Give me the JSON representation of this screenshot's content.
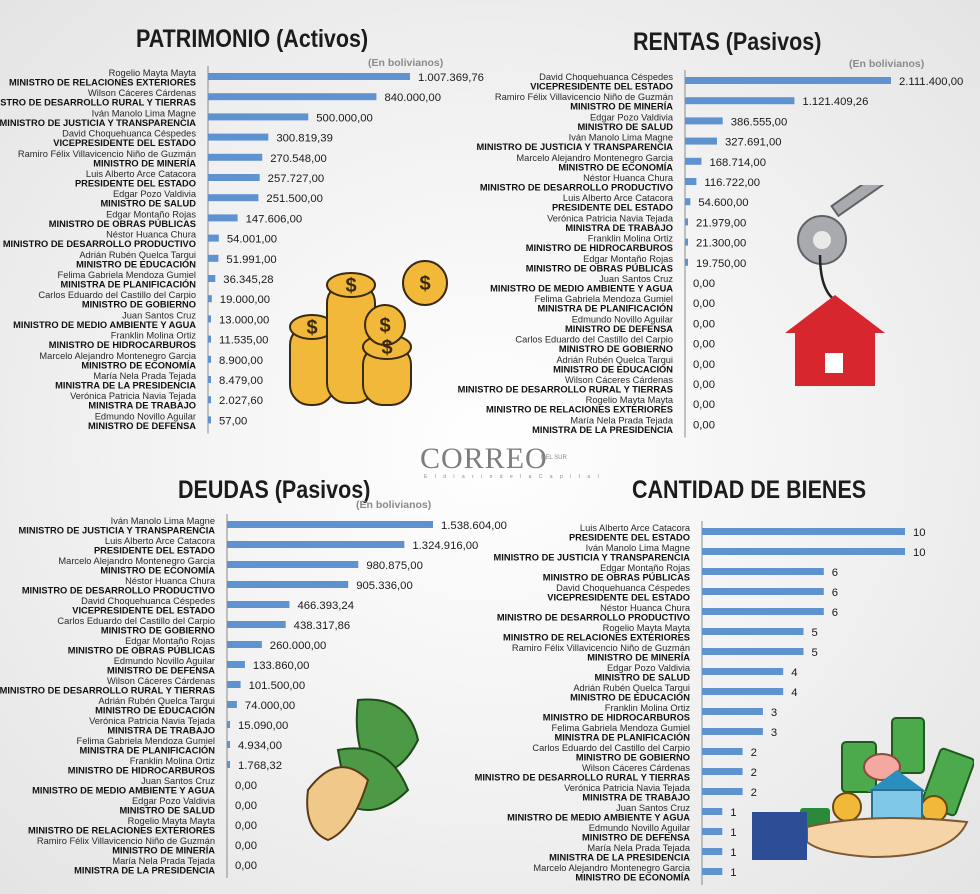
{
  "branding": {
    "logo_text": "CORREO",
    "logo_tag": "DEL SUR",
    "logo_sub": "E l   d i a r i o   d e   l a   C a p i t a l"
  },
  "colors": {
    "bar": "#5f93cf",
    "title": "#1c1c1c",
    "unit": "#8a8a8a"
  },
  "chart_data": [
    {
      "type": "bar",
      "orientation": "horizontal",
      "title": "PATRIMONIO (Activos)",
      "unit_note": "(En bolivianos)",
      "bars": [
        {
          "name": "Rogelio Mayta Mayta",
          "role": "MINISTRO DE RELACIONES EXTERIORES",
          "value": 1007369.76,
          "value_label": "1.007.369,76"
        },
        {
          "name": "Wilson Cáceres Cárdenas",
          "role": "MINISTRO DE DESARROLLO RURAL Y TIERRAS",
          "value": 840000,
          "value_label": "840.000,00"
        },
        {
          "name": "Iván Manolo Lima Magne",
          "role": "MINISTRO DE JUSTICIA Y TRANSPARENCIA",
          "value": 500000,
          "value_label": "500.000,00"
        },
        {
          "name": "David Choquehuanca Céspedes",
          "role": "VICEPRESIDENTE DEL ESTADO",
          "value": 300819.39,
          "value_label": "300.819,39"
        },
        {
          "name": "Ramiro Félix Villavicencio Niño de Guzmán",
          "role": "MINISTRO DE MINERÍA",
          "value": 270548,
          "value_label": "270.548,00"
        },
        {
          "name": "Luis Alberto Arce Catacora",
          "role": "PRESIDENTE DEL ESTADO",
          "value": 257727,
          "value_label": "257.727,00"
        },
        {
          "name": "Edgar Pozo Valdivia",
          "role": "MINISTRO DE SALUD",
          "value": 251500,
          "value_label": "251.500,00"
        },
        {
          "name": "Edgar Montaño Rojas",
          "role": "MINISTRO DE OBRAS PÚBLICAS",
          "value": 147606,
          "value_label": "147.606,00"
        },
        {
          "name": "Néstor Huanca Chura",
          "role": "MINISTRO DE DESARROLLO PRODUCTIVO",
          "value": 54001,
          "value_label": "54.001,00"
        },
        {
          "name": "Adrián Rubén Quelca Tarqui",
          "role": "MINISTRO DE EDUCACIÓN",
          "value": 51991,
          "value_label": "51.991,00"
        },
        {
          "name": "Felima Gabriela Mendoza Gumiel",
          "role": "MINISTRA DE PLANIFICACIÓN",
          "value": 36345.28,
          "value_label": "36.345,28"
        },
        {
          "name": "Carlos Eduardo del Castillo del Carpio",
          "role": "MINISTRO DE GOBIERNO",
          "value": 19000,
          "value_label": "19.000,00"
        },
        {
          "name": "Juan Santos Cruz",
          "role": "MINISTRO DE MEDIO AMBIENTE Y AGUA",
          "value": 13000,
          "value_label": "13.000,00"
        },
        {
          "name": "Franklin Molina Ortiz",
          "role": "MINISTRO DE HIDROCARBUROS",
          "value": 11535,
          "value_label": "11.535,00"
        },
        {
          "name": "Marcelo Alejandro Montenegro Garcia",
          "role": "MINISTRO DE ECONOMÍA",
          "value": 8900,
          "value_label": "8.900,00"
        },
        {
          "name": "María Nela Prada Tejada",
          "role": "MINISTRA DE LA PRESIDENCIA",
          "value": 8479,
          "value_label": "8.479,00"
        },
        {
          "name": "Verónica Patricia Navia Tejada",
          "role": "MINISTRA DE TRABAJO",
          "value": 2027.6,
          "value_label": "2.027,60"
        },
        {
          "name": "Edmundo Novillo Aguilar",
          "role": "MINISTRO DE DEFENSA",
          "value": 57,
          "value_label": "57,00"
        }
      ]
    },
    {
      "type": "bar",
      "orientation": "horizontal",
      "title": "RENTAS (Pasivos)",
      "unit_note": "(En bolivianos)",
      "bars": [
        {
          "name": "David Choquehuanca Céspedes",
          "role": "VICEPRESIDENTE DEL ESTADO",
          "value": 2111400,
          "value_label": "2.111.400,00"
        },
        {
          "name": "Ramiro Félix Villavicencio Niño de Guzmán",
          "role": "MINISTRO DE MINERÍA",
          "value": 1121409.26,
          "value_label": "1.121.409,26"
        },
        {
          "name": "Edgar Pozo Valdivia",
          "role": "MINISTRO DE SALUD",
          "value": 386555,
          "value_label": "386.555,00"
        },
        {
          "name": "Iván Manolo Lima Magne",
          "role": "MINISTRO DE JUSTICIA Y TRANSPARENCIA",
          "value": 327691,
          "value_label": "327.691,00"
        },
        {
          "name": "Marcelo Alejandro Montenegro Garcia",
          "role": "MINISTRO DE ECONOMÍA",
          "value": 168714,
          "value_label": "168.714,00"
        },
        {
          "name": "Néstor Huanca Chura",
          "role": "MINISTRO DE DESARROLLO PRODUCTIVO",
          "value": 116722,
          "value_label": "116.722,00"
        },
        {
          "name": "Luis Alberto Arce Catacora",
          "role": "PRESIDENTE DEL ESTADO",
          "value": 54600,
          "value_label": "54.600,00"
        },
        {
          "name": "Verónica Patricia Navia Tejada",
          "role": "MINISTRA DE TRABAJO",
          "value": 21979,
          "value_label": "21.979,00"
        },
        {
          "name": "Franklin Molina Ortiz",
          "role": "MINISTRO DE HIDROCARBUROS",
          "value": 21300,
          "value_label": "21.300,00"
        },
        {
          "name": "Edgar Montaño Rojas",
          "role": "MINISTRO DE OBRAS PÚBLICAS",
          "value": 19750,
          "value_label": "19.750,00"
        },
        {
          "name": "Juan Santos Cruz",
          "role": "MINISTRO DE MEDIO AMBIENTE Y AGUA",
          "value": 0,
          "value_label": "0,00"
        },
        {
          "name": "Felima Gabriela Mendoza Gumiel",
          "role": "MINISTRA DE PLANIFICACIÓN",
          "value": 0,
          "value_label": "0,00"
        },
        {
          "name": "Edmundo Novillo Aguilar",
          "role": "MINISTRO DE DEFENSA",
          "value": 0,
          "value_label": "0,00"
        },
        {
          "name": "Carlos Eduardo del Castillo del Carpio",
          "role": "MINISTRO DE GOBIERNO",
          "value": 0,
          "value_label": "0,00"
        },
        {
          "name": "Adrián Rubén Quelca Tarqui",
          "role": "MINISTRO DE EDUCACIÓN",
          "value": 0,
          "value_label": "0,00"
        },
        {
          "name": "Wilson Cáceres Cárdenas",
          "role": "MINISTRO DE DESARROLLO RURAL Y TIERRAS",
          "value": 0,
          "value_label": "0,00"
        },
        {
          "name": "Rogelio Mayta Mayta",
          "role": "MINISTRO DE RELACIONES EXTERIORES",
          "value": 0,
          "value_label": "0,00"
        },
        {
          "name": "María Nela Prada Tejada",
          "role": "MINISTRA DE LA PRESIDENCIA",
          "value": 0,
          "value_label": "0,00"
        }
      ]
    },
    {
      "type": "bar",
      "orientation": "horizontal",
      "title": "DEUDAS (Pasivos)",
      "unit_note": "(En bolivianos)",
      "bars": [
        {
          "name": "Iván Manolo Lima Magne",
          "role": "MINISTRO DE JUSTICIA Y TRANSPARENCIA",
          "value": 1538604,
          "value_label": "1.538.604,00"
        },
        {
          "name": "Luis Alberto Arce Catacora",
          "role": "PRESIDENTE DEL ESTADO",
          "value": 1324916,
          "value_label": "1.324.916,00"
        },
        {
          "name": "Marcelo Alejandro Montenegro Garcia",
          "role": "MINISTRO DE ECONOMÍA",
          "value": 980875,
          "value_label": "980.875,00"
        },
        {
          "name": "Néstor Huanca Chura",
          "role": "MINISTRO DE DESARROLLO PRODUCTIVO",
          "value": 905336,
          "value_label": "905.336,00"
        },
        {
          "name": "David Choquehuanca Céspedes",
          "role": "VICEPRESIDENTE DEL ESTADO",
          "value": 466393.24,
          "value_label": "466.393,24"
        },
        {
          "name": "Carlos Eduardo del Castillo del Carpio",
          "role": "MINISTRO DE GOBIERNO",
          "value": 438317.86,
          "value_label": "438.317,86"
        },
        {
          "name": "Edgar Montaño Rojas",
          "role": "MINISTRO DE OBRAS PÚBLICAS",
          "value": 260000,
          "value_label": "260.000,00"
        },
        {
          "name": "Edmundo Novillo Aguilar",
          "role": "MINISTRO DE DEFENSA",
          "value": 133860,
          "value_label": "133.860,00"
        },
        {
          "name": "Wilson Cáceres Cárdenas",
          "role": "MINISTRO DE DESARROLLO RURAL Y TIERRAS",
          "value": 101500,
          "value_label": "101.500,00"
        },
        {
          "name": "Adrián Rubén Quelca Tarqui",
          "role": "MINISTRO DE EDUCACIÓN",
          "value": 74000,
          "value_label": "74.000,00"
        },
        {
          "name": "Verónica Patricia Navia Tejada",
          "role": "MINISTRA DE TRABAJO",
          "value": 15090,
          "value_label": "15.090,00"
        },
        {
          "name": "Felima Gabriela Mendoza Gumiel",
          "role": "MINISTRA DE PLANIFICACIÓN",
          "value": 4934,
          "value_label": "4.934,00"
        },
        {
          "name": "Franklin Molina Ortiz",
          "role": "MINISTRO DE HIDROCARBUROS",
          "value": 1768.32,
          "value_label": "1.768,32"
        },
        {
          "name": "Juan Santos Cruz",
          "role": "MINISTRO DE MEDIO AMBIENTE Y AGUA",
          "value": 0,
          "value_label": "0,00"
        },
        {
          "name": "Edgar Pozo Valdivia",
          "role": "MINISTRO DE SALUD",
          "value": 0,
          "value_label": "0,00"
        },
        {
          "name": "Rogelio Mayta Mayta",
          "role": "MINISTRO DE RELACIONES EXTERIORES",
          "value": 0,
          "value_label": "0,00"
        },
        {
          "name": "Ramiro Félix Villavicencio Niño de Guzmán",
          "role": "MINISTRO DE MINERÍA",
          "value": 0,
          "value_label": "0,00"
        },
        {
          "name": "María Nela Prada Tejada",
          "role": "MINISTRA DE LA PRESIDENCIA",
          "value": 0,
          "value_label": "0,00"
        }
      ]
    },
    {
      "type": "bar",
      "orientation": "horizontal",
      "title": "CANTIDAD DE BIENES",
      "unit_note": "",
      "bars": [
        {
          "name": "Luis Alberto Arce Catacora",
          "role": "PRESIDENTE DEL ESTADO",
          "value": 10,
          "value_label": "10"
        },
        {
          "name": "Iván Manolo Lima Magne",
          "role": "MINISTRO DE JUSTICIA Y TRANSPARENCIA",
          "value": 10,
          "value_label": "10"
        },
        {
          "name": "Edgar Montaño Rojas",
          "role": "MINISTRO DE OBRAS PÚBLICAS",
          "value": 6,
          "value_label": "6"
        },
        {
          "name": "David Choquehuanca Céspedes",
          "role": "VICEPRESIDENTE DEL ESTADO",
          "value": 6,
          "value_label": "6"
        },
        {
          "name": "Néstor Huanca Chura",
          "role": "MINISTRO DE DESARROLLO PRODUCTIVO",
          "value": 6,
          "value_label": "6"
        },
        {
          "name": "Rogelio Mayta Mayta",
          "role": "MINISTRO DE RELACIONES EXTERIORES",
          "value": 5,
          "value_label": "5"
        },
        {
          "name": "Ramiro Félix Villavicencio Niño de Guzmán",
          "role": "MINISTRO DE MINERÍA",
          "value": 5,
          "value_label": "5"
        },
        {
          "name": "Edgar Pozo Valdivia",
          "role": "MINISTRO DE SALUD",
          "value": 4,
          "value_label": "4"
        },
        {
          "name": "Adrián Rubén Quelca Tarqui",
          "role": "MINISTRO DE EDUCACIÓN",
          "value": 4,
          "value_label": "4"
        },
        {
          "name": "Franklin Molina Ortiz",
          "role": "MINISTRO DE HIDROCARBUROS",
          "value": 3,
          "value_label": "3"
        },
        {
          "name": "Felima Gabriela Mendoza Gumiel",
          "role": "MINISTRA DE PLANIFICACIÓN",
          "value": 3,
          "value_label": "3"
        },
        {
          "name": "Carlos Eduardo del Castillo del Carpio",
          "role": "MINISTRO DE GOBIERNO",
          "value": 2,
          "value_label": "2"
        },
        {
          "name": "Wilson Cáceres Cárdenas",
          "role": "MINISTRO DE DESARROLLO RURAL Y TIERRAS",
          "value": 2,
          "value_label": "2"
        },
        {
          "name": "Verónica Patricia Navia Tejada",
          "role": "MINISTRA DE TRABAJO",
          "value": 2,
          "value_label": "2"
        },
        {
          "name": "Juan Santos Cruz",
          "role": "MINISTRO DE MEDIO AMBIENTE Y AGUA",
          "value": 1,
          "value_label": "1"
        },
        {
          "name": "Edmundo Novillo Aguilar",
          "role": "MINISTRO DE DEFENSA",
          "value": 1,
          "value_label": "1"
        },
        {
          "name": "María Nela Prada Tejada",
          "role": "MINISTRA DE LA PRESIDENCIA",
          "value": 1,
          "value_label": "1"
        },
        {
          "name": "Marcelo Alejandro Montenegro Garcia",
          "role": "MINISTRO DE ECONOMÍA",
          "value": 1,
          "value_label": "1"
        }
      ]
    }
  ]
}
